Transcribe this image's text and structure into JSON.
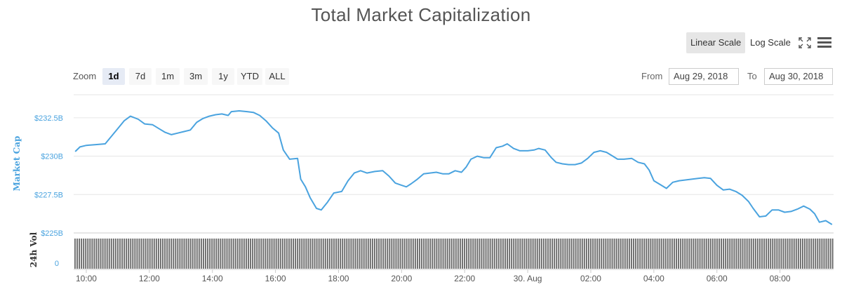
{
  "title": "Total Market Capitalization",
  "controls": {
    "linear_scale": "Linear Scale",
    "log_scale": "Log Scale",
    "zoom_label": "Zoom",
    "zoom_options": [
      "1d",
      "7d",
      "1m",
      "3m",
      "1y",
      "YTD",
      "ALL"
    ],
    "zoom_selected": "1d",
    "from_label": "From",
    "from_value": "Aug 29, 2018",
    "to_label": "To",
    "to_value": "Aug 30, 2018"
  },
  "colors": {
    "line": "#4aa3df",
    "volume": "#6b6b6b",
    "grid": "#e6e6e6"
  },
  "icons": {
    "fullscreen": "fullscreen-icon",
    "menu": "menu-icon"
  },
  "chart_data": {
    "type": "line",
    "title": "Total Market Capitalization",
    "ylabel": "Market Cap",
    "y2label": "24h Vol",
    "ylim": [
      225,
      234
    ],
    "yticks": [
      225,
      227.5,
      230,
      232.5
    ],
    "ytick_labels": [
      "$225B",
      "$227.5B",
      "$230B",
      "$232.5B"
    ],
    "xlim": [
      9.6,
      33.7
    ],
    "xticks": [
      10,
      12,
      14,
      16,
      18,
      20,
      22,
      24,
      26,
      28,
      30,
      32
    ],
    "xtick_labels": [
      "10:00",
      "12:00",
      "14:00",
      "16:00",
      "18:00",
      "20:00",
      "22:00",
      "30. Aug",
      "02:00",
      "04:00",
      "06:00",
      "08:00"
    ],
    "grid": true,
    "series": [
      {
        "values": [
          [
            9.65,
            230.3
          ],
          [
            9.8,
            230.6
          ],
          [
            10.0,
            230.7
          ],
          [
            10.3,
            230.75
          ],
          [
            10.6,
            230.8
          ],
          [
            10.8,
            231.3
          ],
          [
            11.0,
            231.8
          ],
          [
            11.2,
            232.3
          ],
          [
            11.4,
            232.6
          ],
          [
            11.65,
            232.4
          ],
          [
            11.85,
            232.1
          ],
          [
            12.1,
            232.05
          ],
          [
            12.3,
            231.8
          ],
          [
            12.5,
            231.55
          ],
          [
            12.7,
            231.4
          ],
          [
            12.9,
            231.5
          ],
          [
            13.1,
            231.6
          ],
          [
            13.3,
            231.7
          ],
          [
            13.5,
            232.2
          ],
          [
            13.7,
            232.45
          ],
          [
            13.9,
            232.6
          ],
          [
            14.1,
            232.7
          ],
          [
            14.3,
            232.75
          ],
          [
            14.5,
            232.65
          ],
          [
            14.6,
            232.9
          ],
          [
            14.85,
            232.95
          ],
          [
            15.1,
            232.9
          ],
          [
            15.3,
            232.85
          ],
          [
            15.5,
            232.65
          ],
          [
            15.7,
            232.3
          ],
          [
            15.9,
            231.85
          ],
          [
            16.1,
            231.5
          ],
          [
            16.25,
            230.4
          ],
          [
            16.45,
            229.8
          ],
          [
            16.7,
            229.85
          ],
          [
            16.8,
            228.5
          ],
          [
            16.95,
            228.0
          ],
          [
            17.1,
            227.3
          ],
          [
            17.3,
            226.6
          ],
          [
            17.45,
            226.5
          ],
          [
            17.65,
            227.0
          ],
          [
            17.85,
            227.6
          ],
          [
            18.1,
            227.7
          ],
          [
            18.3,
            228.4
          ],
          [
            18.5,
            228.9
          ],
          [
            18.7,
            229.05
          ],
          [
            18.9,
            228.9
          ],
          [
            19.15,
            229.0
          ],
          [
            19.4,
            229.05
          ],
          [
            19.6,
            228.7
          ],
          [
            19.8,
            228.25
          ],
          [
            20.0,
            228.1
          ],
          [
            20.15,
            228.0
          ],
          [
            20.3,
            228.2
          ],
          [
            20.5,
            228.5
          ],
          [
            20.7,
            228.85
          ],
          [
            20.9,
            228.9
          ],
          [
            21.1,
            228.95
          ],
          [
            21.3,
            228.85
          ],
          [
            21.5,
            228.85
          ],
          [
            21.7,
            229.05
          ],
          [
            21.9,
            228.95
          ],
          [
            22.05,
            229.3
          ],
          [
            22.2,
            229.8
          ],
          [
            22.4,
            230.0
          ],
          [
            22.6,
            229.9
          ],
          [
            22.8,
            229.9
          ],
          [
            23.0,
            230.55
          ],
          [
            23.2,
            230.65
          ],
          [
            23.35,
            230.8
          ],
          [
            23.55,
            230.5
          ],
          [
            23.75,
            230.35
          ],
          [
            24.0,
            230.35
          ],
          [
            24.2,
            230.4
          ],
          [
            24.35,
            230.5
          ],
          [
            24.55,
            230.4
          ],
          [
            24.75,
            229.9
          ],
          [
            24.9,
            229.6
          ],
          [
            25.1,
            229.5
          ],
          [
            25.3,
            229.45
          ],
          [
            25.5,
            229.45
          ],
          [
            25.7,
            229.55
          ],
          [
            25.9,
            229.85
          ],
          [
            26.1,
            230.25
          ],
          [
            26.3,
            230.35
          ],
          [
            26.5,
            230.25
          ],
          [
            26.7,
            230.0
          ],
          [
            26.85,
            229.8
          ],
          [
            27.05,
            229.8
          ],
          [
            27.3,
            229.85
          ],
          [
            27.5,
            229.6
          ],
          [
            27.7,
            229.5
          ],
          [
            27.85,
            229.1
          ],
          [
            28.0,
            228.4
          ],
          [
            28.2,
            228.15
          ],
          [
            28.4,
            227.9
          ],
          [
            28.6,
            228.3
          ],
          [
            28.8,
            228.4
          ],
          [
            29.0,
            228.45
          ],
          [
            29.2,
            228.5
          ],
          [
            29.4,
            228.55
          ],
          [
            29.6,
            228.6
          ],
          [
            29.8,
            228.55
          ],
          [
            30.0,
            228.1
          ],
          [
            30.2,
            227.8
          ],
          [
            30.4,
            227.85
          ],
          [
            30.6,
            227.7
          ],
          [
            30.8,
            227.45
          ],
          [
            31.0,
            227.05
          ],
          [
            31.15,
            226.6
          ],
          [
            31.35,
            226.05
          ],
          [
            31.55,
            226.1
          ],
          [
            31.75,
            226.5
          ],
          [
            31.95,
            226.5
          ],
          [
            32.15,
            226.35
          ],
          [
            32.35,
            226.4
          ],
          [
            32.55,
            226.55
          ],
          [
            32.75,
            226.75
          ],
          [
            32.95,
            226.55
          ],
          [
            33.1,
            226.25
          ],
          [
            33.25,
            225.7
          ],
          [
            33.45,
            225.8
          ],
          [
            33.65,
            225.55
          ]
        ]
      }
    ]
  }
}
